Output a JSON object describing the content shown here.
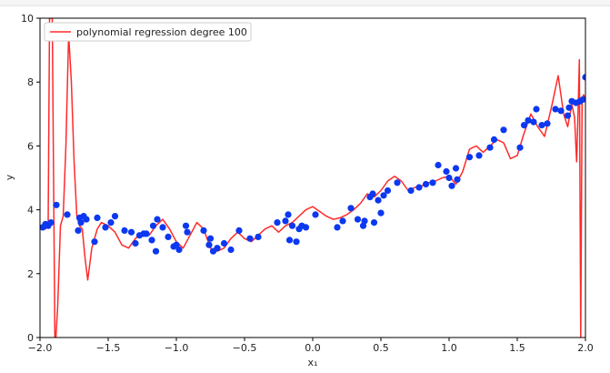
{
  "colors": {
    "line": "#ff2a2a",
    "points": "#0b38f0",
    "axes": "#000000"
  },
  "chart_data": {
    "type": "scatter",
    "title": "",
    "xlabel": "x₁",
    "ylabel": "y",
    "xlim": [
      -2.0,
      2.0
    ],
    "ylim": [
      0,
      10
    ],
    "grid": false,
    "legend_position": "top-left",
    "x_ticks": [
      "−2.0",
      "−1.5",
      "−1.0",
      "−0.5",
      "0.0",
      "0.5",
      "1.0",
      "1.5",
      "2.0"
    ],
    "x_tick_values": [
      -2.0,
      -1.5,
      -1.0,
      -0.5,
      0.0,
      0.5,
      1.0,
      1.5,
      2.0
    ],
    "y_ticks": [
      "0",
      "2",
      "4",
      "6",
      "8",
      "10"
    ],
    "y_tick_values": [
      0,
      2,
      4,
      6,
      8,
      10
    ],
    "legend": [
      {
        "label": "polynomial regression degree 100",
        "series": "fit"
      }
    ],
    "series": [
      {
        "id": "fit",
        "name": "polynomial regression degree 100",
        "kind": "line",
        "x": [
          -2.0,
          -1.96,
          -1.94,
          -1.93,
          -1.91,
          -1.89,
          -1.87,
          -1.85,
          -1.83,
          -1.81,
          -1.79,
          -1.77,
          -1.75,
          -1.73,
          -1.71,
          -1.69,
          -1.67,
          -1.65,
          -1.62,
          -1.58,
          -1.55,
          -1.5,
          -1.45,
          -1.4,
          -1.35,
          -1.3,
          -1.25,
          -1.2,
          -1.15,
          -1.1,
          -1.05,
          -1.0,
          -0.95,
          -0.9,
          -0.85,
          -0.8,
          -0.75,
          -0.7,
          -0.65,
          -0.6,
          -0.55,
          -0.5,
          -0.45,
          -0.4,
          -0.35,
          -0.3,
          -0.25,
          -0.2,
          -0.15,
          -0.1,
          -0.05,
          0.0,
          0.05,
          0.1,
          0.15,
          0.2,
          0.25,
          0.3,
          0.35,
          0.4,
          0.45,
          0.5,
          0.55,
          0.6,
          0.65,
          0.7,
          0.75,
          0.8,
          0.85,
          0.9,
          0.95,
          1.0,
          1.05,
          1.1,
          1.15,
          1.2,
          1.25,
          1.3,
          1.35,
          1.4,
          1.45,
          1.5,
          1.55,
          1.6,
          1.65,
          1.7,
          1.75,
          1.8,
          1.84,
          1.87,
          1.9,
          1.92,
          1.935,
          1.945,
          1.955,
          1.965,
          1.975,
          1.985,
          2.0
        ],
        "y": [
          3.5,
          3.4,
          3.6,
          10.0,
          10.0,
          -0.5,
          1.0,
          3.5,
          3.8,
          6.0,
          9.5,
          8.0,
          5.5,
          3.8,
          3.5,
          3.4,
          2.5,
          1.8,
          2.8,
          3.4,
          3.6,
          3.5,
          3.3,
          2.9,
          2.8,
          3.1,
          3.3,
          3.2,
          3.5,
          3.7,
          3.4,
          3.0,
          2.8,
          3.2,
          3.6,
          3.4,
          2.8,
          2.7,
          2.8,
          3.1,
          3.3,
          3.1,
          3.0,
          3.2,
          3.4,
          3.5,
          3.3,
          3.5,
          3.6,
          3.8,
          4.0,
          4.1,
          3.95,
          3.8,
          3.7,
          3.75,
          3.85,
          4.0,
          4.2,
          4.5,
          4.4,
          4.6,
          4.9,
          5.05,
          4.9,
          4.6,
          4.7,
          4.75,
          4.85,
          4.9,
          5.0,
          5.05,
          4.8,
          5.2,
          5.9,
          6.0,
          5.8,
          6.0,
          6.2,
          6.1,
          5.6,
          5.7,
          6.4,
          7.0,
          6.6,
          6.3,
          7.2,
          8.2,
          7.0,
          6.6,
          7.3,
          6.9,
          5.5,
          7.0,
          8.7,
          0.0,
          7.4,
          7.6,
          7.5
        ]
      },
      {
        "id": "data",
        "name": "",
        "kind": "scatter",
        "points": [
          [
            -1.98,
            3.45
          ],
          [
            -1.96,
            3.55
          ],
          [
            -1.94,
            3.5
          ],
          [
            -1.92,
            3.6
          ],
          [
            -1.88,
            4.15
          ],
          [
            -1.8,
            3.85
          ],
          [
            -1.72,
            3.35
          ],
          [
            -1.71,
            3.75
          ],
          [
            -1.7,
            3.6
          ],
          [
            -1.68,
            3.8
          ],
          [
            -1.66,
            3.7
          ],
          [
            -1.6,
            3.0
          ],
          [
            -1.58,
            3.75
          ],
          [
            -1.52,
            3.45
          ],
          [
            -1.48,
            3.6
          ],
          [
            -1.45,
            3.8
          ],
          [
            -1.38,
            3.35
          ],
          [
            -1.33,
            3.3
          ],
          [
            -1.3,
            2.95
          ],
          [
            -1.27,
            3.2
          ],
          [
            -1.24,
            3.25
          ],
          [
            -1.22,
            3.25
          ],
          [
            -1.18,
            3.05
          ],
          [
            -1.17,
            3.5
          ],
          [
            -1.15,
            2.7
          ],
          [
            -1.14,
            3.7
          ],
          [
            -1.1,
            3.45
          ],
          [
            -1.06,
            3.15
          ],
          [
            -1.02,
            2.85
          ],
          [
            -1.0,
            2.9
          ],
          [
            -0.98,
            2.75
          ],
          [
            -0.93,
            3.5
          ],
          [
            -0.92,
            3.3
          ],
          [
            -0.8,
            3.35
          ],
          [
            -0.76,
            2.9
          ],
          [
            -0.75,
            3.1
          ],
          [
            -0.73,
            2.7
          ],
          [
            -0.7,
            2.8
          ],
          [
            -0.65,
            2.95
          ],
          [
            -0.6,
            2.75
          ],
          [
            -0.54,
            3.35
          ],
          [
            -0.46,
            3.1
          ],
          [
            -0.4,
            3.15
          ],
          [
            -0.26,
            3.6
          ],
          [
            -0.2,
            3.65
          ],
          [
            -0.18,
            3.85
          ],
          [
            -0.17,
            3.05
          ],
          [
            -0.15,
            3.5
          ],
          [
            -0.12,
            3.0
          ],
          [
            -0.1,
            3.4
          ],
          [
            -0.08,
            3.5
          ],
          [
            -0.05,
            3.45
          ],
          [
            0.02,
            3.85
          ],
          [
            0.18,
            3.45
          ],
          [
            0.22,
            3.65
          ],
          [
            0.28,
            4.05
          ],
          [
            0.33,
            3.7
          ],
          [
            0.37,
            3.5
          ],
          [
            0.38,
            3.65
          ],
          [
            0.42,
            4.4
          ],
          [
            0.44,
            4.5
          ],
          [
            0.45,
            3.6
          ],
          [
            0.48,
            4.3
          ],
          [
            0.5,
            3.9
          ],
          [
            0.52,
            4.45
          ],
          [
            0.55,
            4.6
          ],
          [
            0.62,
            4.85
          ],
          [
            0.72,
            4.6
          ],
          [
            0.78,
            4.7
          ],
          [
            0.83,
            4.8
          ],
          [
            0.88,
            4.85
          ],
          [
            0.92,
            5.4
          ],
          [
            0.98,
            5.2
          ],
          [
            1.0,
            5.0
          ],
          [
            1.02,
            4.75
          ],
          [
            1.05,
            5.3
          ],
          [
            1.06,
            4.95
          ],
          [
            1.15,
            5.65
          ],
          [
            1.22,
            5.7
          ],
          [
            1.3,
            5.95
          ],
          [
            1.33,
            6.2
          ],
          [
            1.4,
            6.5
          ],
          [
            1.52,
            5.95
          ],
          [
            1.55,
            6.65
          ],
          [
            1.58,
            6.8
          ],
          [
            1.62,
            6.75
          ],
          [
            1.64,
            7.15
          ],
          [
            1.68,
            6.65
          ],
          [
            1.72,
            6.7
          ],
          [
            1.78,
            7.15
          ],
          [
            1.82,
            7.1
          ],
          [
            1.87,
            6.95
          ],
          [
            1.88,
            7.2
          ],
          [
            1.9,
            7.4
          ],
          [
            1.93,
            7.35
          ],
          [
            1.96,
            7.4
          ],
          [
            1.98,
            7.45
          ],
          [
            2.0,
            8.15
          ]
        ]
      }
    ]
  }
}
